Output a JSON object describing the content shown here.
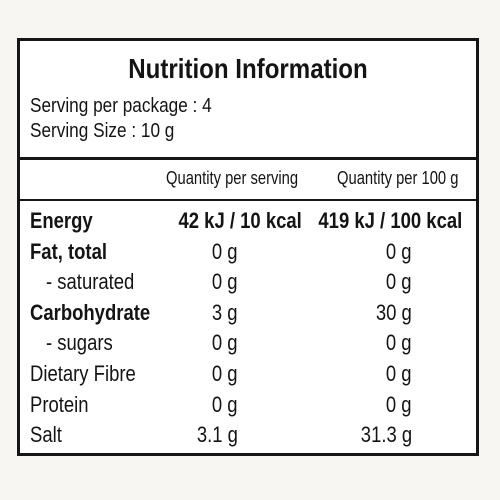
{
  "title": "Nutrition Information",
  "serving_per_package": "Serving per package : 4",
  "serving_size": "Serving Size : 10 g",
  "columns": [
    "Quantity per serving",
    "Quantity per 100 g"
  ],
  "rows": [
    {
      "label": "Energy",
      "per_serving": "42 kJ / 10 kcal",
      "per_100g": "419 kJ / 100 kcal"
    },
    {
      "label": "Fat, total",
      "per_serving": "0 g",
      "per_100g": "0 g"
    },
    {
      "label": "- saturated",
      "per_serving": "0 g",
      "per_100g": "0 g"
    },
    {
      "label": "Carbohydrate",
      "per_serving": "3 g",
      "per_100g": "30 g"
    },
    {
      "label": "- sugars",
      "per_serving": "0 g",
      "per_100g": "0 g"
    },
    {
      "label": "Dietary Fibre",
      "per_serving": "0 g",
      "per_100g": "0 g"
    },
    {
      "label": "Protein",
      "per_serving": "0 g",
      "per_100g": "0 g"
    },
    {
      "label": "Salt",
      "per_serving": "3.1 g",
      "per_100g": "31.3 g"
    }
  ]
}
